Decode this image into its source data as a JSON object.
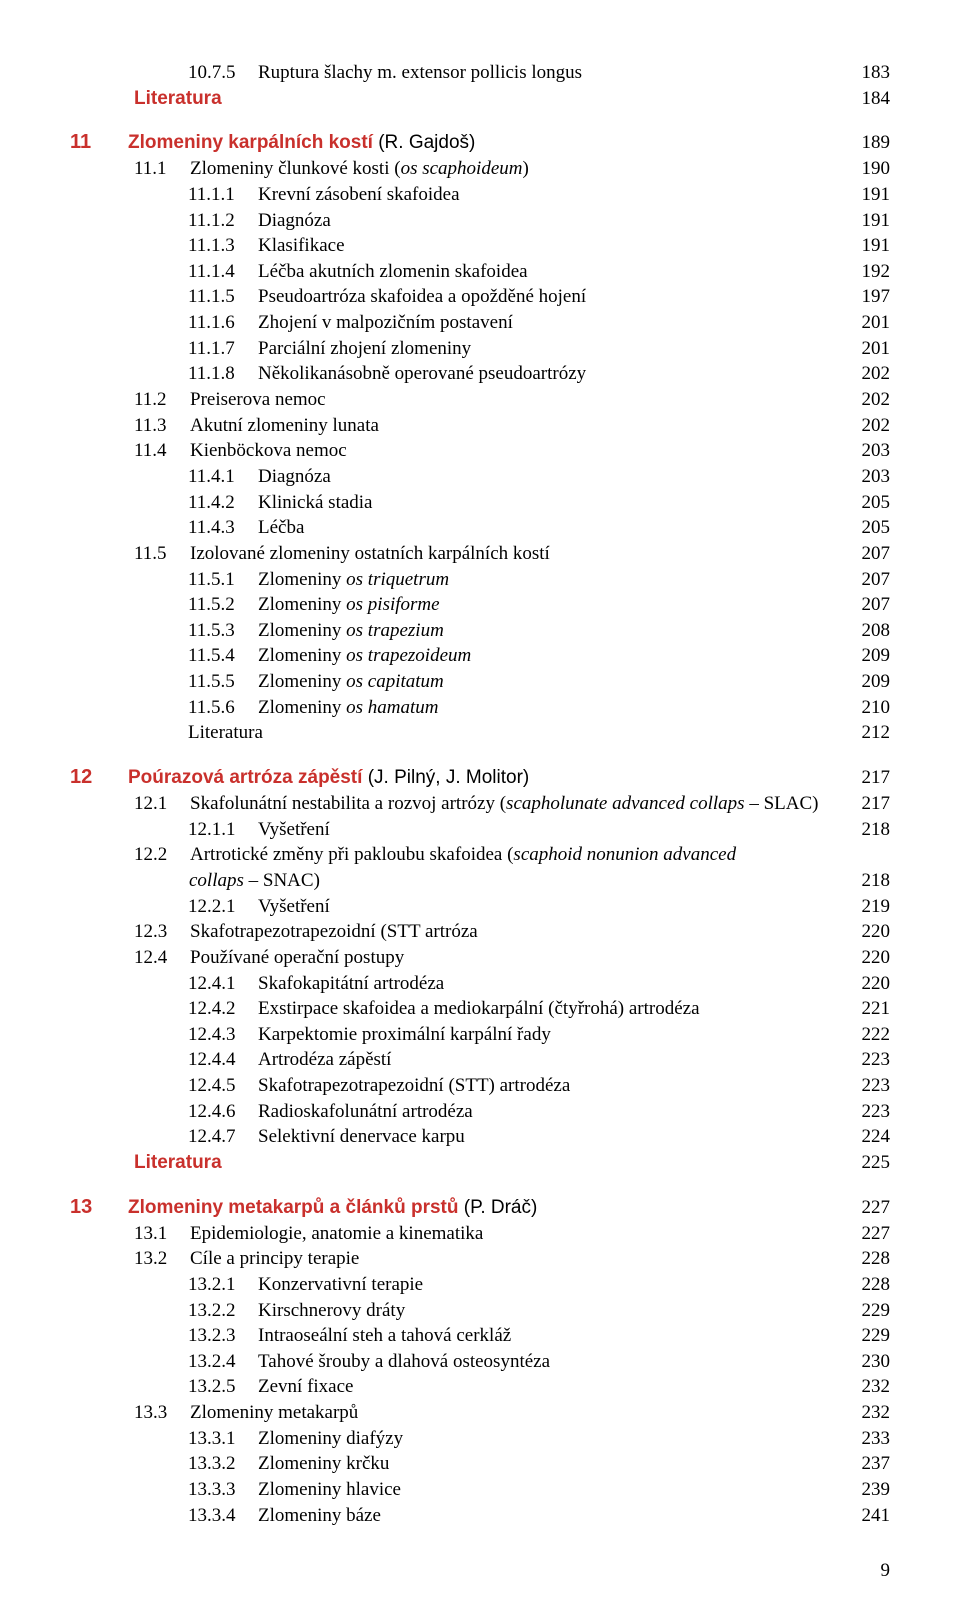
{
  "page_number": "9",
  "colors": {
    "accent": "#c9302c",
    "text": "#000000",
    "bg": "#ffffff"
  },
  "entries": [
    {
      "indent": "s2",
      "num": "10.7.5",
      "title_html": "Ruptura šlachy m. extensor pollicis longus",
      "page": "183"
    },
    {
      "indent": "lit0",
      "kind": "lit",
      "num": "",
      "title_html": "Literatura",
      "page": "184"
    },
    {
      "indent": "ch",
      "kind": "chapter",
      "num": "11",
      "title_html": "Zlomeniny karpálních kostí <span class=\"author\">(R. Gajdoš)</span>",
      "page": "189",
      "spacer": true
    },
    {
      "indent": "s1",
      "num": "11.1",
      "title_html": "Zlomeniny člunkové kosti (<em>os scaphoideum</em>)",
      "page": "190"
    },
    {
      "indent": "s2",
      "num": "11.1.1",
      "title_html": "Krevní zásobení skafoidea",
      "page": "191"
    },
    {
      "indent": "s2",
      "num": "11.1.2",
      "title_html": "Diagnóza",
      "page": "191"
    },
    {
      "indent": "s2",
      "num": "11.1.3",
      "title_html": "Klasifikace",
      "page": "191"
    },
    {
      "indent": "s2",
      "num": "11.1.4",
      "title_html": "Léčba akutních zlomenin skafoidea",
      "page": "192"
    },
    {
      "indent": "s2",
      "num": "11.1.5",
      "title_html": "Pseudoartróza skafoidea a opožděné hojení",
      "page": "197"
    },
    {
      "indent": "s2",
      "num": "11.1.6",
      "title_html": "Zhojení v malpozičním postavení",
      "page": "201"
    },
    {
      "indent": "s2",
      "num": "11.1.7",
      "title_html": "Parciální zhojení zlomeniny",
      "page": "201"
    },
    {
      "indent": "s2",
      "num": "11.1.8",
      "title_html": "Několikanásobně operované pseudoartrózy",
      "page": "202"
    },
    {
      "indent": "s1",
      "num": "11.2",
      "title_html": "Preiserova nemoc",
      "page": "202"
    },
    {
      "indent": "s1",
      "num": "11.3",
      "title_html": "Akutní zlomeniny lunata",
      "page": "202"
    },
    {
      "indent": "s1",
      "num": "11.4",
      "title_html": "Kienböckova nemoc",
      "page": "203"
    },
    {
      "indent": "s2",
      "num": "11.4.1",
      "title_html": "Diagnóza",
      "page": "203"
    },
    {
      "indent": "s2",
      "num": "11.4.2",
      "title_html": "Klinická stadia",
      "page": "205"
    },
    {
      "indent": "s2",
      "num": "11.4.3",
      "title_html": "Léčba",
      "page": "205"
    },
    {
      "indent": "s1",
      "num": "11.5",
      "title_html": "Izolované zlomeniny ostatních karpálních kostí",
      "page": "207"
    },
    {
      "indent": "s2",
      "num": "11.5.1",
      "title_html": "Zlomeniny <em>os triquetrum</em>",
      "page": "207"
    },
    {
      "indent": "s2",
      "num": "11.5.2",
      "title_html": "Zlomeniny <em>os pisiforme</em>",
      "page": "207"
    },
    {
      "indent": "s2",
      "num": "11.5.3",
      "title_html": "Zlomeniny <em>os trapezium</em>",
      "page": "208"
    },
    {
      "indent": "s2",
      "num": "11.5.4",
      "title_html": "Zlomeniny <em>os trapezoideum</em>",
      "page": "209"
    },
    {
      "indent": "s2",
      "num": "11.5.5",
      "title_html": "Zlomeniny <em>os capitatum</em>",
      "page": "209"
    },
    {
      "indent": "s2",
      "num": "11.5.6",
      "title_html": "Zlomeniny <em>os hamatum</em>",
      "page": "210"
    },
    {
      "indent": "lit2",
      "num": "",
      "title_html": "Literatura",
      "page": "212"
    },
    {
      "indent": "ch",
      "kind": "chapter",
      "num": "12",
      "title_html": "Poúrazová artróza zápěstí <span class=\"author\">(J. Pilný, J. Molitor)</span>",
      "page": "217",
      "spacer": true
    },
    {
      "indent": "s1",
      "num": "12.1",
      "title_html": "Skafolunátní nestabilita a rozvoj artrózy (<em>scapholunate advanced collaps</em> – SLAC)",
      "page": "217"
    },
    {
      "indent": "s2",
      "num": "12.1.1",
      "title_html": "Vyšetření",
      "page": "218"
    },
    {
      "indent": "s1",
      "num": "12.2",
      "title_html": "Artrotické změny při pakloubu skafoidea (<em>scaphoid nonunion advanced</em>",
      "page": "",
      "nodots": true
    },
    {
      "indent": "s1",
      "kind": "cont",
      "num": "",
      "title_html": "<em>collaps</em> – SNAC)",
      "page": "218",
      "cont_pad": "55px"
    },
    {
      "indent": "s2",
      "num": "12.2.1",
      "title_html": "Vyšetření",
      "page": "219"
    },
    {
      "indent": "s1",
      "num": "12.3",
      "title_html": "Skafotrapezotrapezoidní (STT artróza",
      "page": "220"
    },
    {
      "indent": "s1",
      "num": "12.4",
      "title_html": "Používané operační postupy",
      "page": "220"
    },
    {
      "indent": "s2",
      "num": "12.4.1",
      "title_html": "Skafokapitátní artrodéza",
      "page": "220"
    },
    {
      "indent": "s2",
      "num": "12.4.2",
      "title_html": "Exstirpace skafoidea a mediokarpální (čtyřrohá) artrodéza",
      "page": "221"
    },
    {
      "indent": "s2",
      "num": "12.4.3",
      "title_html": "Karpektomie proximální karpální řady",
      "page": "222"
    },
    {
      "indent": "s2",
      "num": "12.4.4",
      "title_html": "Artrodéza zápěstí",
      "page": "223"
    },
    {
      "indent": "s2",
      "num": "12.4.5",
      "title_html": "Skafotrapezotrapezoidní (STT) artrodéza",
      "page": "223"
    },
    {
      "indent": "s2",
      "num": "12.4.6",
      "title_html": "Radioskafolunátní artrodéza",
      "page": "223"
    },
    {
      "indent": "s2",
      "num": "12.4.7",
      "title_html": "Selektivní denervace karpu",
      "page": "224"
    },
    {
      "indent": "lit0",
      "kind": "lit",
      "num": "",
      "title_html": "Literatura",
      "page": "225"
    },
    {
      "indent": "ch",
      "kind": "chapter",
      "num": "13",
      "title_html": "Zlomeniny metakarpů a článků prstů <span class=\"author\">(P. Dráč)</span>",
      "page": "227",
      "spacer": true
    },
    {
      "indent": "s1",
      "num": "13.1",
      "title_html": "Epidemiologie, anatomie a kinematika",
      "page": "227"
    },
    {
      "indent": "s1",
      "num": "13.2",
      "title_html": "Cíle a principy terapie",
      "page": "228"
    },
    {
      "indent": "s2",
      "num": "13.2.1",
      "title_html": "Konzervativní terapie",
      "page": "228"
    },
    {
      "indent": "s2",
      "num": "13.2.2",
      "title_html": "Kirschnerovy dráty",
      "page": "229"
    },
    {
      "indent": "s2",
      "num": "13.2.3",
      "title_html": "Intraoseální steh a tahová cerkláž",
      "page": "229"
    },
    {
      "indent": "s2",
      "num": "13.2.4",
      "title_html": "Tahové šrouby a dlahová osteosyntéza",
      "page": "230"
    },
    {
      "indent": "s2",
      "num": "13.2.5",
      "title_html": "Zevní fixace",
      "page": "232"
    },
    {
      "indent": "s1",
      "num": "13.3",
      "title_html": "Zlomeniny metakarpů",
      "page": "232"
    },
    {
      "indent": "s2",
      "num": "13.3.1",
      "title_html": "Zlomeniny diafýzy",
      "page": "233"
    },
    {
      "indent": "s2",
      "num": "13.3.2",
      "title_html": "Zlomeniny krčku",
      "page": "237"
    },
    {
      "indent": "s2",
      "num": "13.3.3",
      "title_html": "Zlomeniny hlavice",
      "page": "239"
    },
    {
      "indent": "s2",
      "num": "13.3.4",
      "title_html": "Zlomeniny báze",
      "page": "241"
    }
  ]
}
